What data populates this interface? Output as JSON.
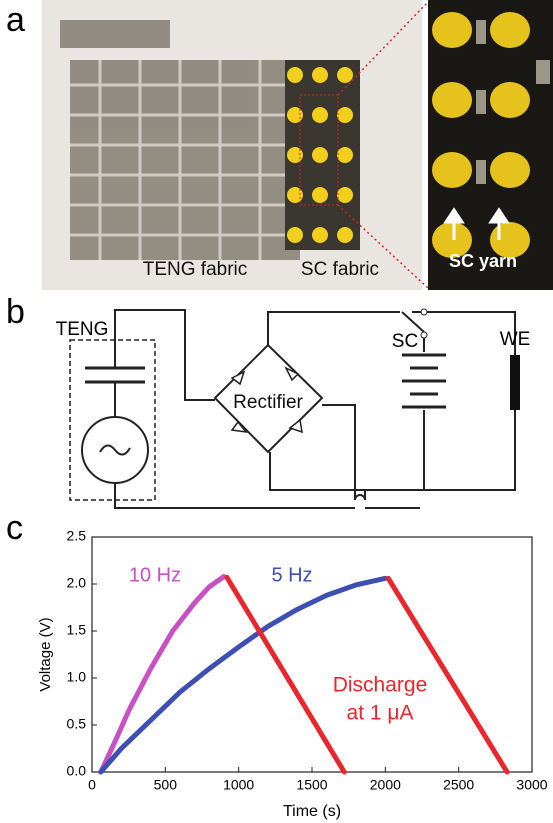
{
  "panel_a": {
    "label": "a",
    "teng_fabric": "TENG fabric",
    "sc_fabric": "SC fabric",
    "sc_yarn": "SC yarn"
  },
  "panel_b": {
    "label": "b",
    "teng": "TENG",
    "rectifier": "Rectifier",
    "sc": "SC",
    "we": "WE"
  },
  "panel_c": {
    "label": "c"
  },
  "chart_data": {
    "type": "line",
    "xlabel": "Time (s)",
    "ylabel": "Voltage (V)",
    "xlim": [
      0,
      3000
    ],
    "ylim": [
      0,
      2.5
    ],
    "xticks": [
      0,
      500,
      1000,
      1500,
      2000,
      2500,
      3000
    ],
    "yticks": [
      {
        "value": 0,
        "label": "0.0"
      },
      0.5,
      {
        "value": 1,
        "label": "1.0"
      },
      1.5,
      {
        "value": 2,
        "label": "2.0"
      },
      2.5
    ],
    "series": [
      {
        "name": "10 Hz",
        "color": "#c84fc4",
        "x": [
          60,
          150,
          250,
          400,
          550,
          700,
          800,
          900
        ],
        "values": [
          0,
          0.3,
          0.65,
          1.1,
          1.5,
          1.8,
          1.97,
          2.08
        ]
      },
      {
        "name": "5 Hz",
        "color": "#3d4fb3",
        "x": [
          60,
          200,
          400,
          600,
          800,
          1000,
          1200,
          1400,
          1600,
          1800,
          2000
        ],
        "values": [
          0,
          0.25,
          0.55,
          0.85,
          1.1,
          1.33,
          1.55,
          1.73,
          1.88,
          1.99,
          2.06
        ]
      },
      {
        "color": "#e8262b",
        "x": [
          920,
          1720,
          null,
          2020,
          2830
        ],
        "values": [
          2.07,
          0,
          null,
          2.06,
          0
        ]
      }
    ],
    "annotations": [
      "Discharge",
      "at 1 μA"
    ]
  }
}
